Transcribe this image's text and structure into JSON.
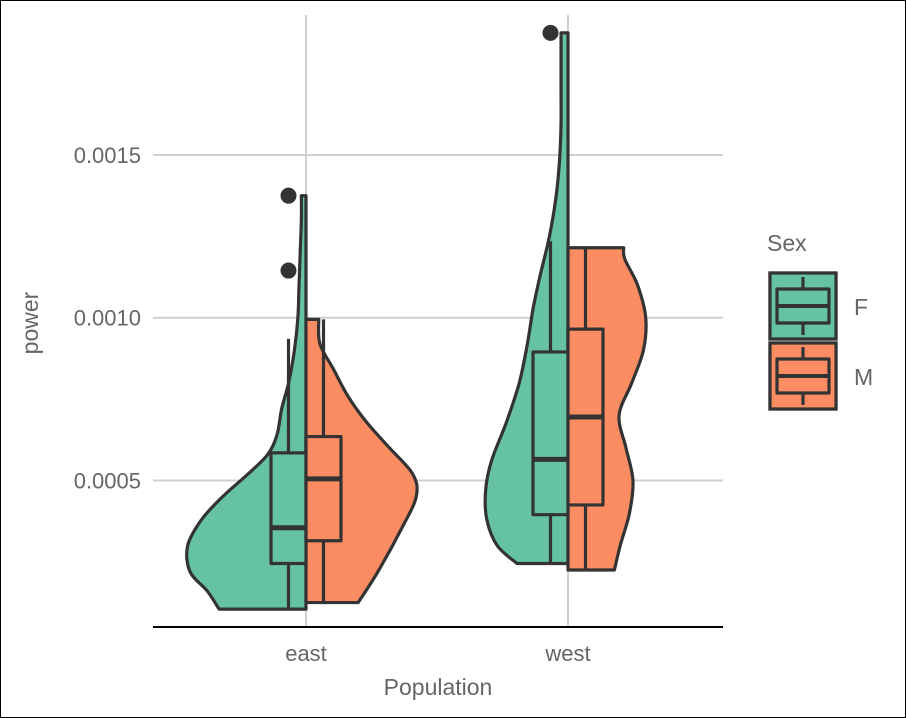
{
  "chart_data": {
    "type": "split-violin with boxplot",
    "title": "",
    "xlabel": "Population",
    "ylabel": "power",
    "categories": [
      "east",
      "west"
    ],
    "ylim": [
      5e-05,
      0.00193
    ],
    "yticks": [
      0.0005,
      0.001,
      0.0015
    ],
    "ytick_labels": [
      "0.0005",
      "0.0010",
      "0.0015"
    ],
    "grid": true,
    "legend": {
      "title": "Sex",
      "position": "right",
      "entries": [
        "F",
        "M"
      ]
    },
    "colors": {
      "F": "#66c2a5",
      "M": "#fc8d62",
      "outline": "#333333"
    },
    "series": [
      {
        "name": "F",
        "groups": [
          {
            "category": "east",
            "violin_min": 0.000105,
            "violin_max": 0.001375,
            "box": {
              "whisker_low": 0.000105,
              "q1": 0.000245,
              "median": 0.000355,
              "q3": 0.000585,
              "whisker_high": 0.000935
            },
            "outliers": [
              0.001145,
              0.001375
            ],
            "density": [
              [
                0.000105,
                0.75
              ],
              [
                0.00016,
                0.85
              ],
              [
                0.00022,
                1.0
              ],
              [
                0.0003,
                1.02
              ],
              [
                0.00038,
                0.9
              ],
              [
                0.00045,
                0.72
              ],
              [
                0.00052,
                0.5
              ],
              [
                0.00058,
                0.33
              ],
              [
                0.00064,
                0.25
              ],
              [
                0.00072,
                0.21
              ],
              [
                0.0008,
                0.15
              ],
              [
                0.0009,
                0.1
              ],
              [
                0.001,
                0.07
              ],
              [
                0.0011,
                0.06
              ],
              [
                0.0012,
                0.05
              ],
              [
                0.0013,
                0.04
              ],
              [
                0.001375,
                0.04
              ]
            ]
          },
          {
            "category": "west",
            "violin_min": 0.000245,
            "violin_max": 0.001875,
            "box": {
              "whisker_low": 0.000245,
              "q1": 0.000395,
              "median": 0.000565,
              "q3": 0.000895,
              "whisker_high": 0.001235
            },
            "outliers": [
              0.001875
            ],
            "density": [
              [
                0.000245,
                0.44
              ],
              [
                0.0003,
                0.61
              ],
              [
                0.00038,
                0.7
              ],
              [
                0.00047,
                0.71
              ],
              [
                0.00056,
                0.66
              ],
              [
                0.00068,
                0.53
              ],
              [
                0.0008,
                0.42
              ],
              [
                0.00092,
                0.35
              ],
              [
                0.00103,
                0.3
              ],
              [
                0.00113,
                0.24
              ],
              [
                0.00125,
                0.16
              ],
              [
                0.00138,
                0.1
              ],
              [
                0.0015,
                0.07
              ],
              [
                0.0016,
                0.06
              ],
              [
                0.0017,
                0.06
              ],
              [
                0.0018,
                0.06
              ],
              [
                0.001875,
                0.06
              ]
            ]
          }
        ]
      },
      {
        "name": "M",
        "groups": [
          {
            "category": "east",
            "violin_min": 0.000125,
            "violin_max": 0.000995,
            "box": {
              "whisker_low": 0.000125,
              "q1": 0.000315,
              "median": 0.000505,
              "q3": 0.000635,
              "whisker_high": 0.000995
            },
            "outliers": [],
            "density": [
              [
                0.000125,
                0.45
              ],
              [
                0.00022,
                0.62
              ],
              [
                0.00035,
                0.82
              ],
              [
                0.00045,
                0.95
              ],
              [
                0.00052,
                0.92
              ],
              [
                0.0006,
                0.72
              ],
              [
                0.00068,
                0.52
              ],
              [
                0.00076,
                0.36
              ],
              [
                0.00084,
                0.24
              ],
              [
                0.00092,
                0.12
              ],
              [
                0.000995,
                0.11
              ]
            ]
          },
          {
            "category": "west",
            "violin_min": 0.000225,
            "violin_max": 0.001215,
            "box": {
              "whisker_low": 0.000225,
              "q1": 0.000425,
              "median": 0.000695,
              "q3": 0.000965,
              "whisker_high": 0.001215
            },
            "outliers": [],
            "density": [
              [
                0.000225,
                0.4
              ],
              [
                0.0003,
                0.45
              ],
              [
                0.0004,
                0.53
              ],
              [
                0.0005,
                0.56
              ],
              [
                0.0006,
                0.5
              ],
              [
                0.0007,
                0.44
              ],
              [
                0.0008,
                0.55
              ],
              [
                0.0009,
                0.65
              ],
              [
                0.001,
                0.67
              ],
              [
                0.0011,
                0.6
              ],
              [
                0.00118,
                0.49
              ],
              [
                0.001215,
                0.48
              ]
            ]
          }
        ]
      }
    ]
  }
}
